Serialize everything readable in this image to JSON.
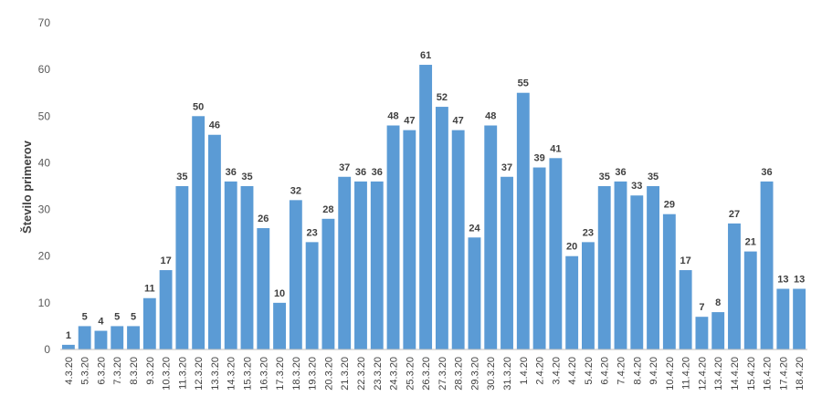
{
  "chart_data": {
    "type": "bar",
    "ylabel": "Število primerov",
    "ylim": [
      0,
      70
    ],
    "yticks": [
      0,
      10,
      20,
      30,
      40,
      50,
      60,
      70
    ],
    "grid": false,
    "categories": [
      "4.3.20",
      "5.3.20",
      "6.3.20",
      "7.3.20",
      "8.3.20",
      "9.3.20",
      "10.3.20",
      "11.3.20",
      "12.3.20",
      "13.3.20",
      "14.3.20",
      "15.3.20",
      "16.3.20",
      "17.3.20",
      "18.3.20",
      "19.3.20",
      "20.3.20",
      "21.3.20",
      "22.3.20",
      "23.3.20",
      "24.3.20",
      "25.3.20",
      "26.3.20",
      "27.3.20",
      "28.3.20",
      "29.3.20",
      "30.3.20",
      "31.3.20",
      "1.4.20",
      "2.4.20",
      "3.4.20",
      "4.4.20",
      "5.4.20",
      "6.4.20",
      "7.4.20",
      "8.4.20",
      "9.4.20",
      "10.4.20",
      "11.4.20",
      "12.4.20",
      "13.4.20",
      "14.4.20",
      "15.4.20",
      "16.4.20",
      "17.4.20",
      "18.4.20"
    ],
    "values": [
      1,
      5,
      4,
      5,
      5,
      11,
      17,
      35,
      50,
      46,
      36,
      35,
      26,
      10,
      32,
      23,
      28,
      37,
      36,
      36,
      48,
      47,
      61,
      52,
      47,
      24,
      48,
      37,
      55,
      39,
      41,
      20,
      23,
      35,
      36,
      33,
      35,
      29,
      17,
      7,
      8,
      27,
      21,
      36,
      13,
      13
    ],
    "colors": {
      "bar": "#5b9bd5",
      "axis": "#bfbfbf"
    }
  }
}
